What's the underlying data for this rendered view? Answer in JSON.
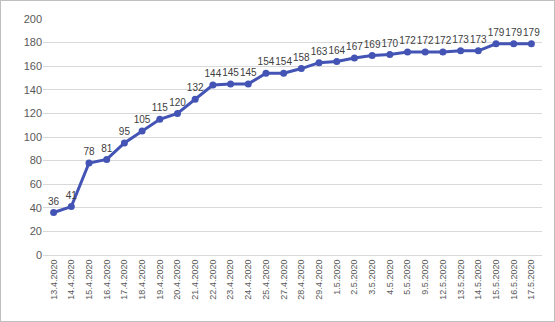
{
  "chart_data": {
    "type": "line",
    "categories": [
      "13.4.2020",
      "14.4.2020",
      "15.4.2020",
      "16.4.2020",
      "17.4.2020",
      "18.4.2020",
      "19.4.2020",
      "20.4.2020",
      "21.4.2020",
      "22.4.2020",
      "23.4.2020",
      "24.4.2020",
      "25.4.2020",
      "27.4.2020",
      "28.4.2020",
      "29.4.2020",
      "1.5.2020",
      "2.5.2020",
      "3.5.2020",
      "4.5.2020",
      "5.5.2020",
      "9.5.2020",
      "12.5.2020",
      "13.5.2020",
      "14.5.2020",
      "15.5.2020",
      "16.5.2020",
      "17.5.2020"
    ],
    "values": [
      36,
      41,
      78,
      81,
      95,
      105,
      115,
      120,
      132,
      144,
      145,
      145,
      154,
      154,
      158,
      163,
      164,
      167,
      169,
      170,
      172,
      172,
      172,
      173,
      173,
      179,
      179,
      179
    ],
    "color": "#4354b5",
    "marker": "circle",
    "ylim": [
      0,
      200
    ],
    "yticks": [
      0,
      20,
      40,
      60,
      80,
      100,
      120,
      140,
      160,
      180,
      200
    ],
    "grid": true,
    "data_labels": true
  }
}
